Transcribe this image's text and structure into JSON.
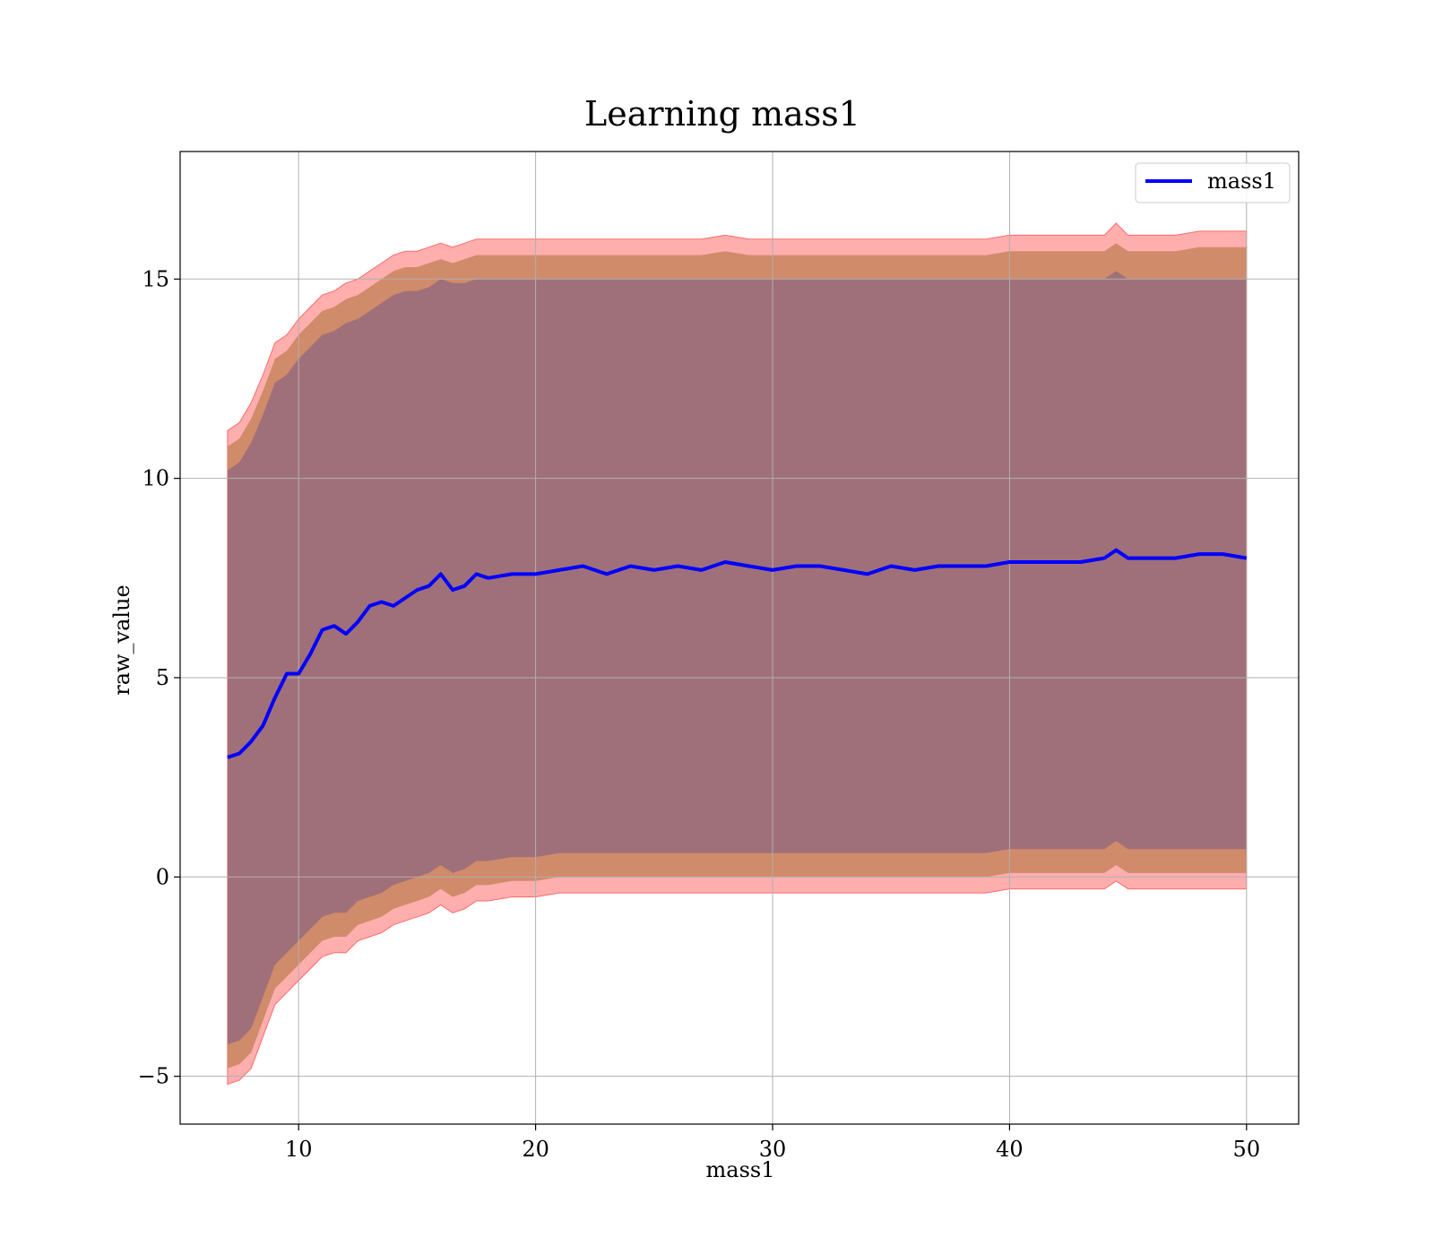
{
  "chart_data": {
    "type": "line",
    "title": "Learning mass1",
    "xlabel": "mass1",
    "ylabel": "raw_value",
    "xlim": [
      5,
      52.2
    ],
    "ylim": [
      -6.2,
      18.2
    ],
    "xticks": [
      10,
      20,
      30,
      40,
      50
    ],
    "yticks": [
      -5,
      0,
      5,
      10,
      15
    ],
    "xtick_labels": [
      "10",
      "20",
      "30",
      "40",
      "50"
    ],
    "ytick_labels": [
      "−5",
      "0",
      "5",
      "10",
      "15"
    ],
    "grid": true,
    "legend": {
      "placement": "top-right",
      "entries": [
        "mass1"
      ]
    },
    "colors": {
      "line": "#0000ff",
      "band_outer": "#ff6b6b",
      "band_middle": "#c8855e",
      "band_inner": "#a0707a"
    },
    "series": [
      {
        "name": "mass1",
        "x": [
          7.0,
          7.5,
          8.0,
          8.5,
          9.0,
          9.5,
          10.0,
          10.5,
          11.0,
          11.5,
          12.0,
          12.5,
          13.0,
          13.5,
          14.0,
          14.5,
          15.0,
          15.5,
          16.0,
          16.5,
          17.0,
          17.5,
          18.0,
          19.0,
          20.0,
          21.0,
          22.0,
          23.0,
          24.0,
          25.0,
          26.0,
          27.0,
          28.0,
          29.0,
          30.0,
          31.0,
          32.0,
          33.0,
          34.0,
          35.0,
          36.0,
          37.0,
          38.0,
          39.0,
          40.0,
          41.0,
          42.0,
          43.0,
          44.0,
          44.5,
          45.0,
          46.0,
          47.0,
          48.0,
          49.0,
          50.0
        ],
        "y": [
          3.0,
          3.1,
          3.4,
          3.8,
          4.5,
          5.1,
          5.1,
          5.6,
          6.2,
          6.3,
          6.1,
          6.4,
          6.8,
          6.9,
          6.8,
          7.0,
          7.2,
          7.3,
          7.6,
          7.2,
          7.3,
          7.6,
          7.5,
          7.6,
          7.6,
          7.7,
          7.8,
          7.6,
          7.8,
          7.7,
          7.8,
          7.7,
          7.9,
          7.8,
          7.7,
          7.8,
          7.8,
          7.7,
          7.6,
          7.8,
          7.7,
          7.8,
          7.8,
          7.8,
          7.9,
          7.9,
          7.9,
          7.9,
          8.0,
          8.2,
          8.0,
          8.0,
          8.0,
          8.1,
          8.1,
          8.0
        ],
        "band_inner": {
          "upper": [
            10.2,
            10.4,
            10.9,
            11.6,
            12.4,
            12.6,
            13.0,
            13.3,
            13.6,
            13.7,
            13.9,
            14.0,
            14.2,
            14.4,
            14.6,
            14.7,
            14.7,
            14.8,
            15.0,
            14.9,
            14.9,
            15.0,
            15.0,
            15.0,
            15.0,
            15.0,
            15.0,
            15.0,
            15.0,
            15.0,
            15.0,
            15.0,
            15.0,
            15.0,
            15.0,
            15.0,
            15.0,
            15.0,
            15.0,
            15.0,
            15.0,
            15.0,
            15.0,
            15.0,
            15.0,
            15.0,
            15.0,
            15.0,
            15.0,
            15.2,
            15.0,
            15.0,
            15.0,
            15.0,
            15.0,
            15.0
          ],
          "lower": [
            -4.2,
            -4.1,
            -3.8,
            -3.0,
            -2.2,
            -1.9,
            -1.6,
            -1.3,
            -1.0,
            -0.9,
            -0.9,
            -0.6,
            -0.5,
            -0.4,
            -0.2,
            -0.1,
            0.0,
            0.1,
            0.3,
            0.1,
            0.2,
            0.4,
            0.4,
            0.5,
            0.5,
            0.6,
            0.6,
            0.6,
            0.6,
            0.6,
            0.6,
            0.6,
            0.6,
            0.6,
            0.6,
            0.6,
            0.6,
            0.6,
            0.6,
            0.6,
            0.6,
            0.6,
            0.6,
            0.6,
            0.7,
            0.7,
            0.7,
            0.7,
            0.7,
            0.9,
            0.7,
            0.7,
            0.7,
            0.7,
            0.7,
            0.7
          ]
        },
        "band_middle": {
          "upper": [
            10.8,
            11.0,
            11.5,
            12.2,
            13.0,
            13.2,
            13.6,
            13.9,
            14.2,
            14.3,
            14.5,
            14.6,
            14.8,
            15.0,
            15.2,
            15.3,
            15.3,
            15.4,
            15.5,
            15.4,
            15.5,
            15.6,
            15.6,
            15.6,
            15.6,
            15.6,
            15.6,
            15.6,
            15.6,
            15.6,
            15.6,
            15.6,
            15.7,
            15.6,
            15.6,
            15.6,
            15.6,
            15.6,
            15.6,
            15.6,
            15.6,
            15.6,
            15.6,
            15.6,
            15.7,
            15.7,
            15.7,
            15.7,
            15.7,
            15.9,
            15.7,
            15.7,
            15.7,
            15.8,
            15.8,
            15.8
          ],
          "lower": [
            -4.8,
            -4.7,
            -4.4,
            -3.6,
            -2.8,
            -2.5,
            -2.2,
            -1.9,
            -1.6,
            -1.5,
            -1.5,
            -1.2,
            -1.1,
            -1.0,
            -0.8,
            -0.7,
            -0.6,
            -0.5,
            -0.3,
            -0.5,
            -0.4,
            -0.2,
            -0.2,
            -0.1,
            -0.1,
            0.0,
            0.0,
            0.0,
            0.0,
            0.0,
            0.0,
            0.0,
            0.0,
            0.0,
            0.0,
            0.0,
            0.0,
            0.0,
            0.0,
            0.0,
            0.0,
            0.0,
            0.0,
            0.0,
            0.1,
            0.1,
            0.1,
            0.1,
            0.1,
            0.3,
            0.1,
            0.1,
            0.1,
            0.1,
            0.1,
            0.1
          ]
        },
        "band_outer": {
          "upper": [
            11.2,
            11.4,
            11.9,
            12.6,
            13.4,
            13.6,
            14.0,
            14.3,
            14.6,
            14.7,
            14.9,
            15.0,
            15.2,
            15.4,
            15.6,
            15.7,
            15.7,
            15.8,
            15.9,
            15.8,
            15.9,
            16.0,
            16.0,
            16.0,
            16.0,
            16.0,
            16.0,
            16.0,
            16.0,
            16.0,
            16.0,
            16.0,
            16.1,
            16.0,
            16.0,
            16.0,
            16.0,
            16.0,
            16.0,
            16.0,
            16.0,
            16.0,
            16.0,
            16.0,
            16.1,
            16.1,
            16.1,
            16.1,
            16.1,
            16.4,
            16.1,
            16.1,
            16.1,
            16.2,
            16.2,
            16.2
          ],
          "lower": [
            -5.2,
            -5.1,
            -4.8,
            -4.0,
            -3.2,
            -2.9,
            -2.6,
            -2.3,
            -2.0,
            -1.9,
            -1.9,
            -1.6,
            -1.5,
            -1.4,
            -1.2,
            -1.1,
            -1.0,
            -0.9,
            -0.7,
            -0.9,
            -0.8,
            -0.6,
            -0.6,
            -0.5,
            -0.5,
            -0.4,
            -0.4,
            -0.4,
            -0.4,
            -0.4,
            -0.4,
            -0.4,
            -0.4,
            -0.4,
            -0.4,
            -0.4,
            -0.4,
            -0.4,
            -0.4,
            -0.4,
            -0.4,
            -0.4,
            -0.4,
            -0.4,
            -0.3,
            -0.3,
            -0.3,
            -0.3,
            -0.3,
            -0.1,
            -0.3,
            -0.3,
            -0.3,
            -0.3,
            -0.3,
            -0.3
          ]
        }
      }
    ]
  }
}
